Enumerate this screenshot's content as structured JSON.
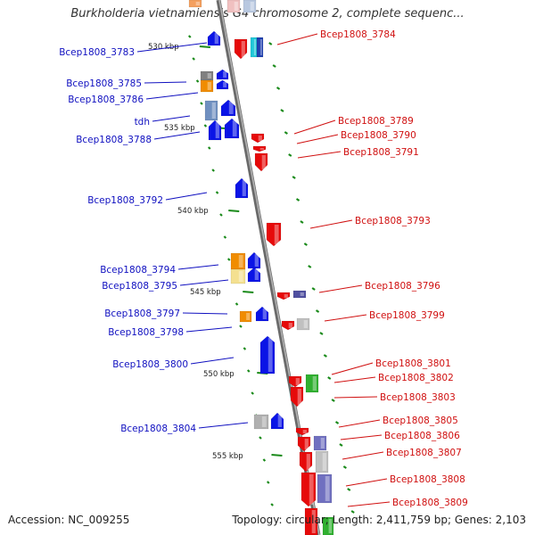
{
  "title": "Burkholderia vietnamiensis G4 chromosome 2, complete sequenc...",
  "footer": {
    "accession": "Accession: NC_009255",
    "topology": "Topology: circular; Length: 2,411,759 bp; Genes: 2,103"
  },
  "colors": {
    "backbone": "#8a8a8a",
    "forward": "#0a14e6",
    "reverse": "#e60a0a",
    "label_left": "#1010c0",
    "label_right": "#d01010",
    "dash": "#1a8a1a"
  },
  "kbp_labels": [
    "530 kbp",
    "535 kbp",
    "540 kbp",
    "545 kbp",
    "550 kbp",
    "555 kbp"
  ],
  "left_labels": [
    "Bcep1808_3783",
    "Bcep1808_3785",
    "Bcep1808_3786",
    "tdh",
    "Bcep1808_3788",
    "Bcep1808_3792",
    "Bcep1808_3794",
    "Bcep1808_3795",
    "Bcep1808_3797",
    "Bcep1808_3798",
    "Bcep1808_3800",
    "Bcep1808_3804"
  ],
  "right_labels": [
    "Bcep1808_3784",
    "Bcep1808_3789",
    "Bcep1808_3790",
    "Bcep1808_3791",
    "Bcep1808_3793",
    "Bcep1808_3796",
    "Bcep1808_3799",
    "Bcep1808_3801",
    "Bcep1808_3802",
    "Bcep1808_3803",
    "Bcep1808_3805",
    "Bcep1808_3806",
    "Bcep1808_3807",
    "Bcep1808_3808",
    "Bcep1808_3809"
  ]
}
